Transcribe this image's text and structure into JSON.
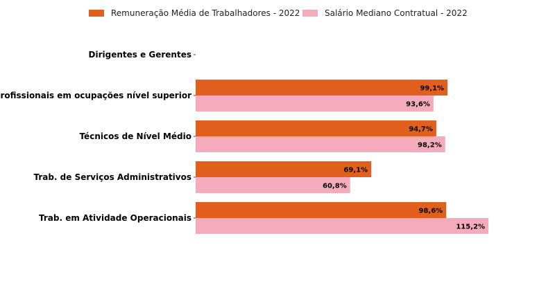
{
  "colors": {
    "series1": "#e2601e",
    "series2": "#f4abbb"
  },
  "legend": [
    {
      "label": "Remuneração Média de Trabalhadores - 2022",
      "color": "#e2601e"
    },
    {
      "label": "Salário Mediano Contratual - 2022",
      "color": "#f4abbb"
    }
  ],
  "chart_data": {
    "type": "bar",
    "orientation": "horizontal",
    "categories": [
      "Dirigentes e Gerentes",
      "Profissionais em ocupações nível superior",
      "Técnicos de Nível Médio",
      "Trab. de Serviços Administrativos",
      "Trab. em Atividade Operacionais"
    ],
    "series": [
      {
        "name": "Remuneração Média de Trabalhadores - 2022",
        "values": [
          null,
          99.1,
          94.7,
          69.1,
          98.6
        ],
        "labels": [
          "",
          "99,1%",
          "94,7%",
          "69,1%",
          "98,6%"
        ]
      },
      {
        "name": "Salário Mediano Contratual - 2022",
        "values": [
          null,
          93.6,
          98.2,
          60.8,
          115.2
        ],
        "labels": [
          "",
          "93,6%",
          "98,2%",
          "60,8%",
          "115,2%"
        ]
      }
    ],
    "xlim": [
      0,
      115.2
    ],
    "grid": false,
    "legend_position": "top-center",
    "title": "",
    "xlabel": "",
    "ylabel": ""
  }
}
